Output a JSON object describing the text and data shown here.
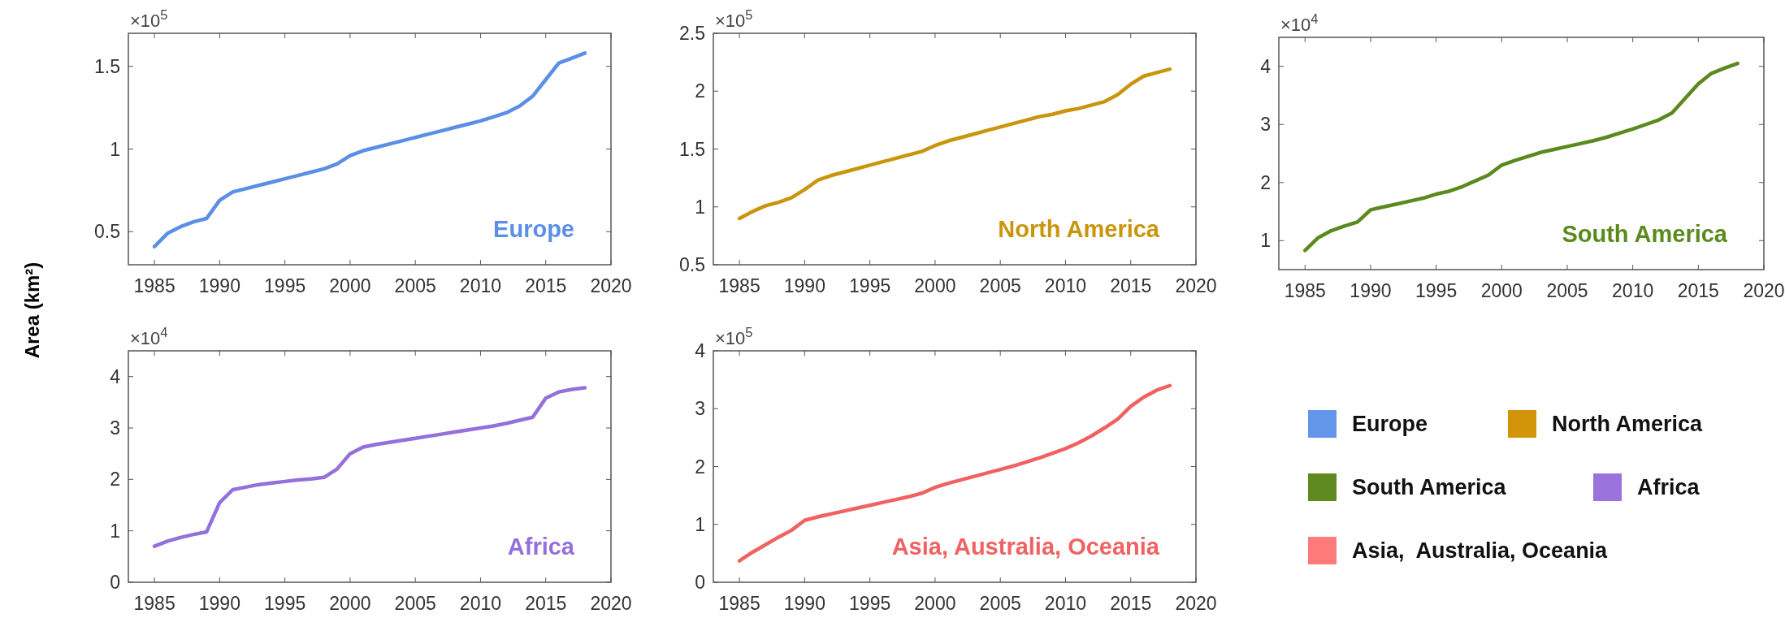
{
  "chart_data": [
    {
      "type": "line",
      "x": [
        1985,
        1986,
        1987,
        1988,
        1989,
        1990,
        1991,
        1992,
        1993,
        1994,
        1995,
        1996,
        1997,
        1998,
        1999,
        2000,
        2001,
        2002,
        2003,
        2004,
        2005,
        2006,
        2007,
        2008,
        2009,
        2010,
        2011,
        2012,
        2013,
        2014,
        2015,
        2016,
        2017,
        2018
      ],
      "xlim": [
        1983,
        2020
      ],
      "xticks": [
        1985,
        1990,
        1995,
        2000,
        2005,
        2010,
        2015,
        2020
      ],
      "ylim": [
        0.3,
        1.7
      ],
      "yticks": [
        0.5,
        1,
        1.5
      ],
      "annotations": [
        "×10$^{5}$"
      ],
      "series": [
        {
          "name": "Europe",
          "color": "#5b8ee6",
          "values": [
            0.41,
            0.49,
            0.53,
            0.56,
            0.58,
            0.69,
            0.74,
            0.76,
            0.78,
            0.8,
            0.82,
            0.84,
            0.86,
            0.88,
            0.91,
            0.96,
            0.99,
            1.01,
            1.03,
            1.05,
            1.07,
            1.09,
            1.11,
            1.13,
            1.15,
            1.17,
            1.195,
            1.22,
            1.26,
            1.32,
            1.42,
            1.52,
            1.55,
            1.58
          ]
        }
      ]
    },
    {
      "type": "line",
      "x": [
        1985,
        1986,
        1987,
        1988,
        1989,
        1990,
        1991,
        1992,
        1993,
        1994,
        1995,
        1996,
        1997,
        1998,
        1999,
        2000,
        2001,
        2002,
        2003,
        2004,
        2005,
        2006,
        2007,
        2008,
        2009,
        2010,
        2011,
        2012,
        2013,
        2014,
        2015,
        2016,
        2017,
        2018
      ],
      "xlim": [
        1983,
        2020
      ],
      "xticks": [
        1985,
        1990,
        1995,
        2000,
        2005,
        2010,
        2015,
        2020
      ],
      "ylim": [
        0.5,
        2.5
      ],
      "yticks": [
        0.5,
        1,
        1.5,
        2,
        2.5
      ],
      "annotations": [
        "×10$^{5}$"
      ],
      "series": [
        {
          "name": "North America",
          "color": "#c8950c",
          "values": [
            0.9,
            0.96,
            1.01,
            1.04,
            1.08,
            1.15,
            1.23,
            1.27,
            1.3,
            1.33,
            1.36,
            1.39,
            1.42,
            1.45,
            1.48,
            1.53,
            1.57,
            1.6,
            1.63,
            1.66,
            1.69,
            1.72,
            1.75,
            1.78,
            1.8,
            1.83,
            1.85,
            1.88,
            1.91,
            1.97,
            2.06,
            2.13,
            2.16,
            2.19
          ]
        }
      ]
    },
    {
      "type": "line",
      "x": [
        1985,
        1986,
        1987,
        1988,
        1989,
        1990,
        1991,
        1992,
        1993,
        1994,
        1995,
        1996,
        1997,
        1998,
        1999,
        2000,
        2001,
        2002,
        2003,
        2004,
        2005,
        2006,
        2007,
        2008,
        2009,
        2010,
        2011,
        2012,
        2013,
        2014,
        2015,
        2016,
        2017,
        2018
      ],
      "xlim": [
        1983,
        2020
      ],
      "xticks": [
        1985,
        1990,
        1995,
        2000,
        2005,
        2010,
        2015,
        2020
      ],
      "ylim": [
        0.5,
        4.5
      ],
      "yticks": [
        1,
        2,
        3,
        4
      ],
      "annotations": [
        "×10$^{4}$"
      ],
      "series": [
        {
          "name": "South America",
          "color": "#5a8a1e",
          "values": [
            0.83,
            1.05,
            1.17,
            1.25,
            1.32,
            1.53,
            1.58,
            1.63,
            1.68,
            1.73,
            1.8,
            1.85,
            1.93,
            2.03,
            2.13,
            2.3,
            2.38,
            2.45,
            2.52,
            2.57,
            2.62,
            2.67,
            2.72,
            2.78,
            2.85,
            2.92,
            3.0,
            3.08,
            3.2,
            3.45,
            3.7,
            3.88,
            3.97,
            4.05
          ]
        }
      ]
    },
    {
      "type": "line",
      "x": [
        1985,
        1986,
        1987,
        1988,
        1989,
        1990,
        1991,
        1992,
        1993,
        1994,
        1995,
        1996,
        1997,
        1998,
        1999,
        2000,
        2001,
        2002,
        2003,
        2004,
        2005,
        2006,
        2007,
        2008,
        2009,
        2010,
        2011,
        2012,
        2013,
        2014,
        2015,
        2016,
        2017,
        2018
      ],
      "xlim": [
        1983,
        2020
      ],
      "xticks": [
        1985,
        1990,
        1995,
        2000,
        2005,
        2010,
        2015,
        2020
      ],
      "ylim": [
        0,
        4.5
      ],
      "yticks": [
        0,
        1,
        2,
        3,
        4
      ],
      "annotations": [
        "×10$^{4}$"
      ],
      "ylabel": "Area (km²)",
      "series": [
        {
          "name": "Africa",
          "color": "#9370db",
          "values": [
            0.7,
            0.8,
            0.87,
            0.93,
            0.98,
            1.55,
            1.8,
            1.85,
            1.9,
            1.93,
            1.96,
            1.99,
            2.01,
            2.04,
            2.2,
            2.5,
            2.63,
            2.68,
            2.72,
            2.76,
            2.8,
            2.84,
            2.88,
            2.92,
            2.96,
            3.0,
            3.04,
            3.09,
            3.15,
            3.21,
            3.58,
            3.7,
            3.75,
            3.78
          ]
        }
      ]
    },
    {
      "type": "line",
      "x": [
        1985,
        1986,
        1987,
        1988,
        1989,
        1990,
        1991,
        1992,
        1993,
        1994,
        1995,
        1996,
        1997,
        1998,
        1999,
        2000,
        2001,
        2002,
        2003,
        2004,
        2005,
        2006,
        2007,
        2008,
        2009,
        2010,
        2011,
        2012,
        2013,
        2014,
        2015,
        2016,
        2017,
        2018
      ],
      "xlim": [
        1983,
        2020
      ],
      "xticks": [
        1985,
        1990,
        1995,
        2000,
        2005,
        2010,
        2015,
        2020
      ],
      "ylim": [
        0,
        4
      ],
      "yticks": [
        0,
        1,
        2,
        3,
        4
      ],
      "annotations": [
        "×10$^{5}$"
      ],
      "series": [
        {
          "name": "Asia, Australia, Oceania",
          "color": "#f06262",
          "values": [
            0.37,
            0.52,
            0.65,
            0.78,
            0.9,
            1.07,
            1.13,
            1.18,
            1.23,
            1.28,
            1.33,
            1.38,
            1.43,
            1.48,
            1.54,
            1.64,
            1.71,
            1.77,
            1.83,
            1.89,
            1.95,
            2.01,
            2.08,
            2.15,
            2.23,
            2.31,
            2.41,
            2.53,
            2.67,
            2.82,
            3.04,
            3.2,
            3.32,
            3.4
          ]
        }
      ]
    },
    {
      "type": "other",
      "legend": "right",
      "series": [
        {
          "name": "Europe",
          "color": "#6196e8"
        },
        {
          "name": "North America",
          "color": "#d4940a"
        },
        {
          "name": "South America",
          "color": "#5e8a1f"
        },
        {
          "name": "Africa",
          "color": "#9c72dd"
        },
        {
          "name": "Asia,  Australia, Oceania",
          "color": "#ff7b7b"
        }
      ]
    }
  ]
}
